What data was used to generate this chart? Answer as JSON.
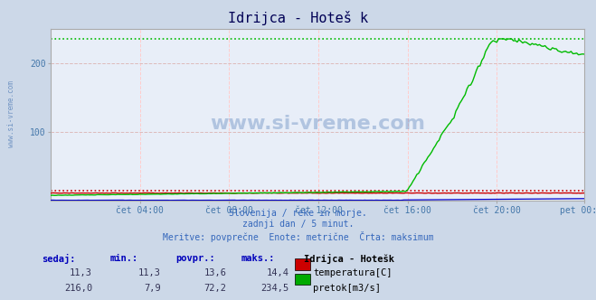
{
  "title_text": "Idrijca - Hoteš k",
  "bg_color": "#ccd8e8",
  "plot_bg_color": "#e8eef8",
  "grid_color_v": "#ffcccc",
  "grid_color_h": "#ddbbbb",
  "ylabel_color": "#4477aa",
  "xlabel_color": "#4477aa",
  "subtitle_lines": [
    "Slovenija / reke in morje.",
    "zadnji dan / 5 minut.",
    "Meritve: povprečne  Enote: metrične  Črta: maksimum"
  ],
  "table_headers": [
    "sedaj:",
    "min.:",
    "povpr.:",
    "maks.:"
  ],
  "table_row1": [
    "11,3",
    "11,3",
    "13,6",
    "14,4"
  ],
  "table_row2": [
    "216,0",
    "7,9",
    "72,2",
    "234,5"
  ],
  "legend_title": "Idrijca - Hotešk",
  "legend_items": [
    "temperatura[C]",
    "pretok[m3/s]"
  ],
  "legend_colors": [
    "#cc0000",
    "#00aa00"
  ],
  "temp_color": "#cc0000",
  "flow_color": "#00bb00",
  "blue_color": "#0000cc",
  "temp_max_val": 14.4,
  "flow_max_val": 234.5,
  "temp_scale_max": 20.0,
  "flow_scale_max": 250.0,
  "ymax": 250,
  "ymin": 0,
  "num_points": 288,
  "x_tick_labels": [
    "čet 04:00",
    "čet 08:00",
    "čet 12:00",
    "čet 16:00",
    "čet 20:00",
    "pet 00:00"
  ],
  "x_tick_positions": [
    48,
    96,
    144,
    192,
    240,
    287
  ],
  "y_tick_positions": [
    100,
    200
  ],
  "watermark": "www.si-vreme.com"
}
